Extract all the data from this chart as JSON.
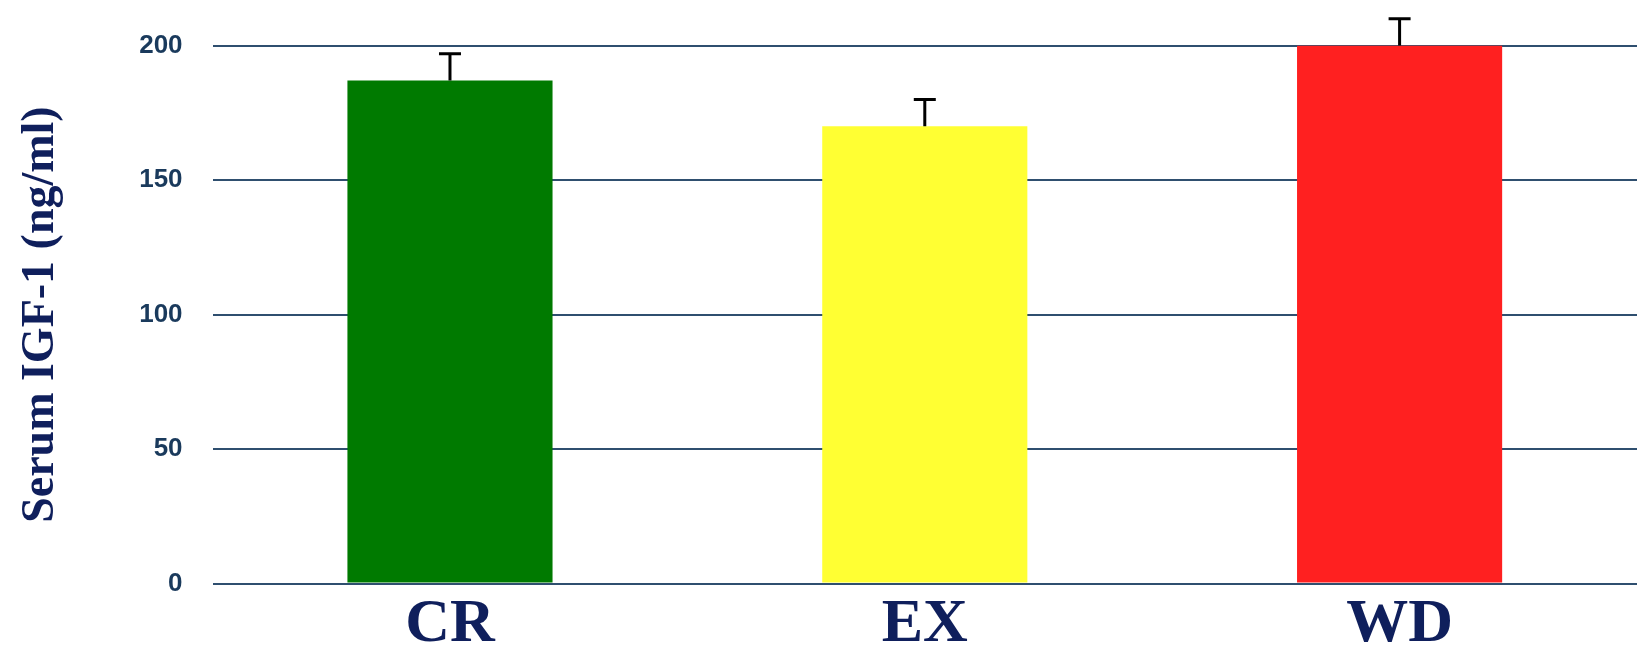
{
  "chart_data": {
    "type": "bar",
    "ylabel": "Serum IGF-1 (ng/ml)",
    "categories": [
      "CR",
      "EX",
      "WD"
    ],
    "values": [
      187,
      170,
      200
    ],
    "colors": [
      "#007a00",
      "#ffff33",
      "#ff2020"
    ],
    "errors": [
      [
        187,
        197
      ],
      [
        170,
        180
      ],
      [
        200,
        210
      ]
    ],
    "ylim": [
      0,
      200
    ],
    "yticks": [
      0,
      50,
      100,
      150,
      200
    ],
    "grid": "y"
  }
}
